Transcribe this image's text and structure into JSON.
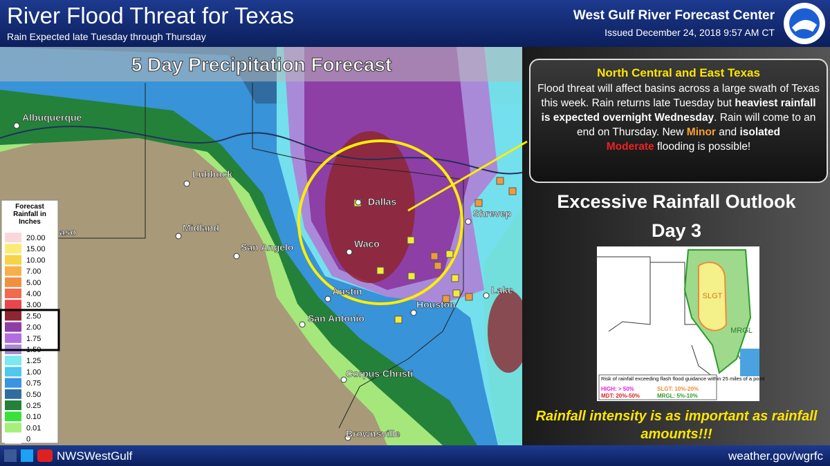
{
  "header": {
    "title": "River Flood Threat for Texas",
    "subtitle": "Rain Expected late Tuesday through Thursday",
    "center": "West Gulf River Forecast Center",
    "issued": "Issued December 24, 2018 9:57 AM CT"
  },
  "map": {
    "title": "5 Day Precipitation Forecast",
    "legend": {
      "title": "Forecast Rainfall in Inches",
      "items": [
        {
          "label": "20.00",
          "color": "#fbd7dc"
        },
        {
          "label": "15.00",
          "color": "#fbeb74"
        },
        {
          "label": "10.00",
          "color": "#f7d345"
        },
        {
          "label": "7.00",
          "color": "#f5b04c"
        },
        {
          "label": "5.00",
          "color": "#f0903f"
        },
        {
          "label": "4.00",
          "color": "#ee6b4e"
        },
        {
          "label": "3.00",
          "color": "#e8464c"
        },
        {
          "label": "2.50",
          "color": "#8e2630"
        },
        {
          "label": "2.00",
          "color": "#8d3fa6"
        },
        {
          "label": "1.75",
          "color": "#b26ee0"
        },
        {
          "label": "1.50",
          "color": "#a98ad8"
        },
        {
          "label": "1.25",
          "color": "#7be9f0"
        },
        {
          "label": "1.00",
          "color": "#4fc7ef"
        },
        {
          "label": "0.75",
          "color": "#3a94e0"
        },
        {
          "label": "0.50",
          "color": "#2f6da0"
        },
        {
          "label": "0.25",
          "color": "#24813a"
        },
        {
          "label": "0.10",
          "color": "#39e13a"
        },
        {
          "label": "0.01",
          "color": "#a4f07b"
        },
        {
          "label": "0",
          "color": "#ffffff"
        }
      ]
    },
    "cities": [
      "Albuquerque",
      "Lubbock",
      "Midland",
      "aso",
      "San Angelo",
      "Dallas",
      "Waco",
      "Austin",
      "San Antonio",
      "Houston",
      "Corpus Christi",
      "Brownsville",
      "Shrevep",
      "Lake"
    ]
  },
  "callout": {
    "heading": "North Central and East Texas",
    "body": [
      {
        "text": "Flood threat will affect basins across a large swath of Texas this week. Rain returns late Tuesday but ",
        "style": "plain"
      },
      {
        "text": "heaviest rainfall is expected overnight Wednesday",
        "style": "bold"
      },
      {
        "text": ".  Rain will come to an end on Thursday. New ",
        "style": "plain"
      },
      {
        "text": "Minor",
        "style": "orange"
      },
      {
        "text": " and ",
        "style": "plain"
      },
      {
        "text": "isolated",
        "style": "bold"
      },
      {
        "text": "Moderate",
        "style": "red"
      },
      {
        "text": " flooding is possible!",
        "style": "plain"
      }
    ]
  },
  "outlook": {
    "title": "Excessive Rainfall Outlook",
    "day": "Day 3",
    "slgt_label": "SLGT",
    "mrgl_label": "MRGL",
    "legend_title": "Risk of rainfall exceeding flash flood guidance within 25 miles of a point",
    "legend": [
      "HIGH: > 50%",
      "SLGT: 10%-20%",
      "MDT: 20%-50%",
      "MRGL: 5%-10%"
    ]
  },
  "footnote": "Rainfall intensity is as important as rainfall amounts!!!",
  "footer": {
    "handle": "NWSWestGulf",
    "url": "weather.gov/wgrfc"
  }
}
